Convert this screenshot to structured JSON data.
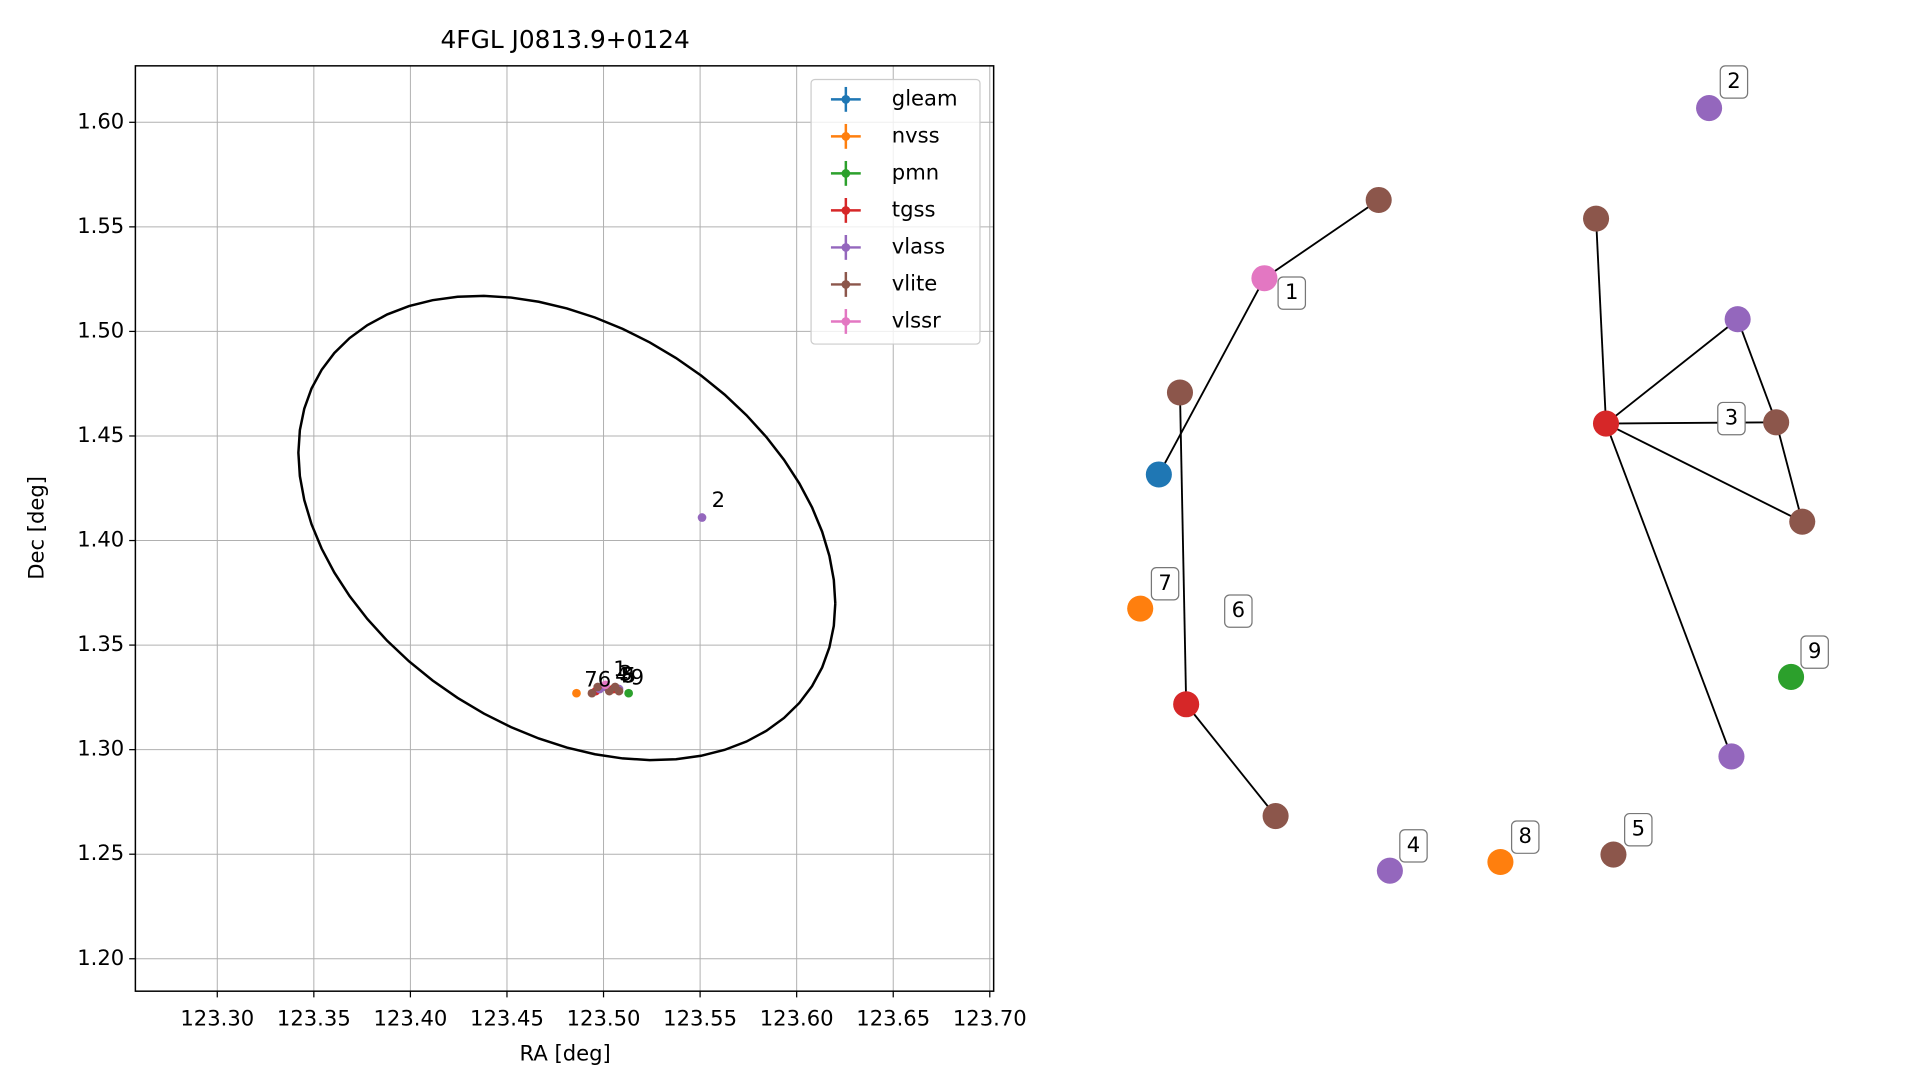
{
  "chart_data": [
    {
      "type": "scatter",
      "title": "4FGL J0813.9+0124",
      "xlabel": "RA [deg]",
      "ylabel": "Dec [deg]",
      "xlim": [
        123.2576,
        123.702
      ],
      "ylim": [
        1.1845,
        1.627
      ],
      "xticks": [
        {
          "value": 123.3,
          "label": "123.30"
        },
        123.35,
        {
          "value": 123.4,
          "label": "123.40"
        },
        123.45,
        {
          "value": 123.5,
          "label": "123.50"
        },
        123.55,
        {
          "value": 123.6,
          "label": "123.60"
        },
        123.65,
        {
          "value": 123.7,
          "label": "123.70"
        }
      ],
      "yticks": [
        {
          "value": 1.2,
          "label": "1.20"
        },
        1.25,
        {
          "value": 1.3,
          "label": "1.30"
        },
        1.35,
        {
          "value": 1.4,
          "label": "1.40"
        },
        1.45,
        {
          "value": 1.5,
          "label": "1.50"
        },
        1.55,
        {
          "value": 1.6,
          "label": "1.60"
        }
      ],
      "grid": true,
      "legend": "upper right",
      "series": [
        {
          "name": "gleam",
          "color": "#1f77b4",
          "x": [
            123.497
          ],
          "y": [
            1.329
          ]
        },
        {
          "name": "nvss",
          "color": "#ff7f0e",
          "x": [
            123.486,
            123.505
          ],
          "y": [
            1.327,
            1.329
          ]
        },
        {
          "name": "pmn",
          "color": "#2ca02c",
          "x": [
            123.513
          ],
          "y": [
            1.327
          ]
        },
        {
          "name": "tgss",
          "color": "#d62728",
          "x": [
            123.496,
            123.505
          ],
          "y": [
            1.328,
            1.329
          ]
        },
        {
          "name": "vlass",
          "color": "#9467bd",
          "x": [
            123.551,
            123.498,
            123.508,
            123.501
          ],
          "y": [
            1.411,
            1.329,
            1.329,
            1.33
          ]
        },
        {
          "name": "vlite",
          "color": "#8c564b",
          "x": [
            123.494,
            123.497,
            123.506,
            123.503,
            123.508
          ],
          "y": [
            1.327,
            1.33,
            1.33,
            1.328,
            1.328
          ]
        },
        {
          "name": "vlssr",
          "color": "#e377c2",
          "x": [
            123.501
          ],
          "y": [
            1.331
          ]
        }
      ],
      "annotations": [
        {
          "text": "7",
          "x": 123.49,
          "y": 1.333
        },
        {
          "text": "6",
          "x": 123.497,
          "y": 1.333
        },
        {
          "text": "1",
          "x": 123.505,
          "y": 1.338
        },
        {
          "text": "4",
          "x": 123.506,
          "y": 1.335
        },
        {
          "text": "8",
          "x": 123.509,
          "y": 1.335
        },
        {
          "text": "5",
          "x": 123.51,
          "y": 1.335
        },
        {
          "text": "3",
          "x": 123.508,
          "y": 1.336
        },
        {
          "text": "9",
          "x": 123.514,
          "y": 1.334
        },
        {
          "text": "2",
          "x": 123.556,
          "y": 1.419
        }
      ],
      "ellipse": {
        "color": "#000000",
        "center": [
          123.481,
          1.406
        ],
        "u": [
          0.139,
          -0.036
        ],
        "v": [
          0,
          0.105
        ]
      }
    },
    {
      "type": "network",
      "nodes": [
        {
          "color": "#8c564b"
        },
        {
          "color": "#e377c2"
        },
        {
          "color": "#8c564b"
        },
        {
          "color": "#1f77b4"
        },
        {
          "color": "#d62728"
        },
        {
          "color": "#8c564b"
        },
        {
          "color": "#ff7f0e"
        },
        {
          "color": "#9467bd"
        },
        {
          "color": "#ff7f0e"
        },
        {
          "color": "#8c564b"
        },
        {
          "color": "#9467bd"
        },
        {
          "color": "#8c564b"
        },
        {
          "color": "#9467bd"
        },
        {
          "color": "#d62728"
        },
        {
          "color": "#8c564b"
        },
        {
          "color": "#8c564b"
        },
        {
          "color": "#9467bd"
        },
        {
          "color": "#2ca02c"
        }
      ],
      "edges": [
        [
          0,
          1
        ],
        [
          1,
          3
        ],
        [
          2,
          4
        ],
        [
          4,
          5
        ],
        [
          11,
          13
        ],
        [
          13,
          12
        ],
        [
          13,
          14
        ],
        [
          13,
          15
        ],
        [
          13,
          16
        ],
        [
          12,
          14
        ],
        [
          14,
          15
        ]
      ],
      "labels": [
        "1",
        "2",
        "3",
        "4",
        "5",
        "6",
        "7",
        "8",
        "9"
      ]
    }
  ]
}
